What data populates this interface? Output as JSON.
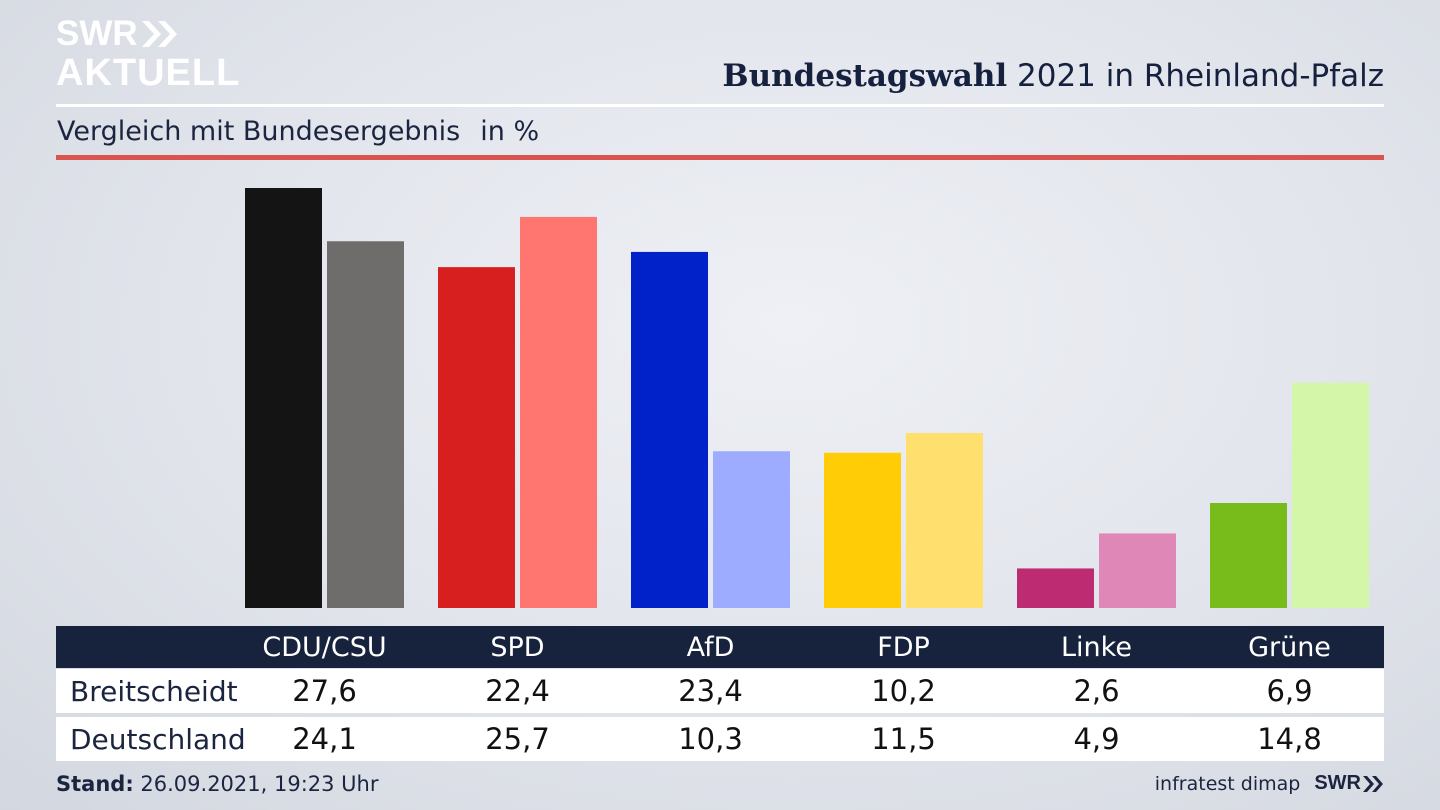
{
  "brand": {
    "logo_line1": "SWR",
    "logo_line2": "AKTUELL",
    "footer_logo": "SWR"
  },
  "header": {
    "title_bold": "Bundestagswahl",
    "title_rest": " 2021 in Rheinland-Pfalz",
    "subtitle": "Vergleich mit Bundesergebnis",
    "unit": "in %"
  },
  "footer": {
    "stand_label": "Stand:",
    "stand_value": " 26.09.2021, 19:23 Uhr",
    "source": "infratest dimap"
  },
  "chart_data": {
    "type": "bar",
    "categories": [
      "CDU/CSU",
      "SPD",
      "AfD",
      "FDP",
      "Linke",
      "Grüne"
    ],
    "series": [
      {
        "name": "Breitscheidt",
        "values": [
          "27,6",
          "22,4",
          "23,4",
          "10,2",
          "2,6",
          "6,9"
        ],
        "numeric": [
          27.6,
          22.4,
          23.4,
          10.2,
          2.6,
          6.9
        ],
        "colors": [
          "#141414",
          "#d71f1f",
          "#0022c8",
          "#ffcc06",
          "#bd2c72",
          "#78bc1b"
        ]
      },
      {
        "name": "Deutschland",
        "values": [
          "24,1",
          "25,7",
          "10,3",
          "11,5",
          "4,9",
          "14,8"
        ],
        "numeric": [
          24.1,
          25.7,
          10.3,
          11.5,
          4.9,
          14.8
        ],
        "colors": [
          "#6e6d6b",
          "#ff7670",
          "#9eacff",
          "#ffe06f",
          "#df88b7",
          "#d4f6a8"
        ]
      }
    ],
    "ylim": [
      0,
      27.6
    ],
    "grid": false,
    "legend": "table-below"
  }
}
